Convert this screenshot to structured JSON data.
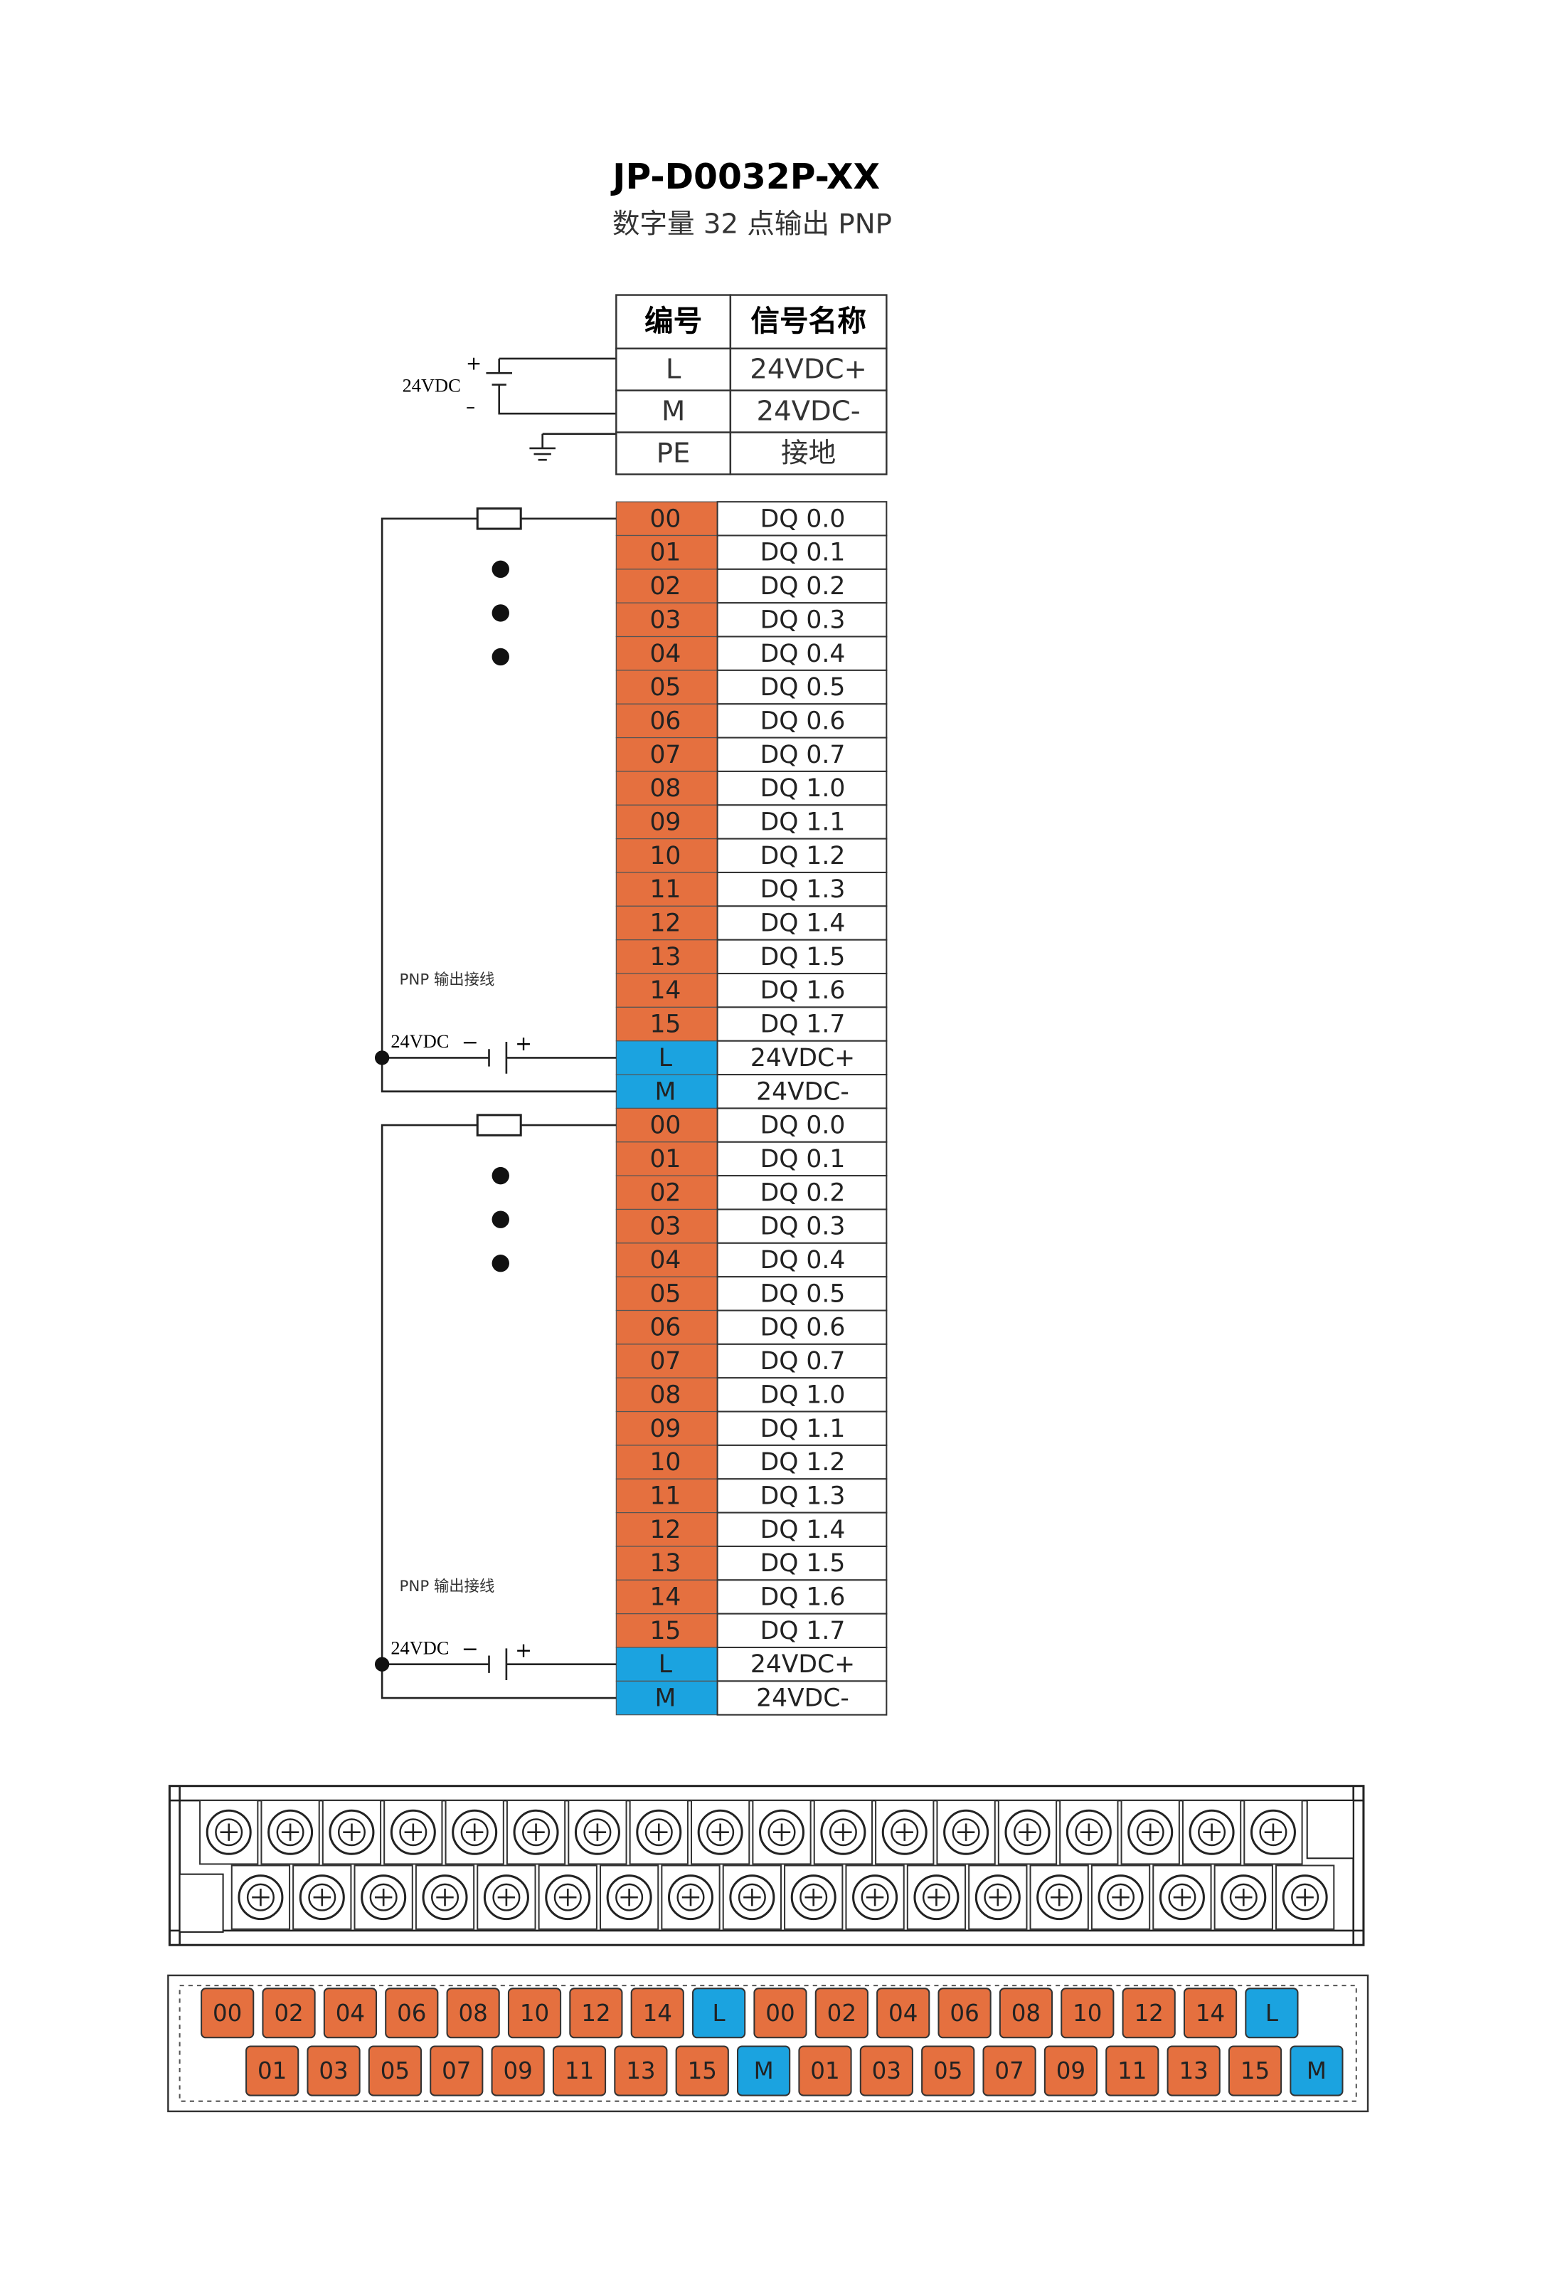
{
  "title": "JP-D0032P-XX",
  "subtitle": "数字量 32 点输出  PNP",
  "power": {
    "label": "24VDC",
    "plus": "+",
    "minus": "–",
    "table": {
      "header": [
        "编号",
        "信号名称"
      ],
      "rows": [
        [
          "L",
          "24VDC+"
        ],
        [
          "M",
          "24VDC-"
        ],
        [
          "PE",
          "接地"
        ]
      ]
    }
  },
  "groups": [
    {
      "label": "PNP 输出接线",
      "supply": "24VDC",
      "minus": "−",
      "plus": "+",
      "rows": [
        [
          "00",
          "DQ 0.0"
        ],
        [
          "01",
          "DQ 0.1"
        ],
        [
          "02",
          "DQ 0.2"
        ],
        [
          "03",
          "DQ 0.3"
        ],
        [
          "04",
          "DQ 0.4"
        ],
        [
          "05",
          "DQ 0.5"
        ],
        [
          "06",
          "DQ 0.6"
        ],
        [
          "07",
          "DQ 0.7"
        ],
        [
          "08",
          "DQ 1.0"
        ],
        [
          "09",
          "DQ 1.1"
        ],
        [
          "10",
          "DQ 1.2"
        ],
        [
          "11",
          "DQ 1.3"
        ],
        [
          "12",
          "DQ 1.4"
        ],
        [
          "13",
          "DQ 1.5"
        ],
        [
          "14",
          "DQ 1.6"
        ],
        [
          "15",
          "DQ 1.7"
        ],
        [
          "L",
          "24VDC+"
        ],
        [
          "M",
          "24VDC-"
        ]
      ]
    },
    {
      "label": "PNP 输出接线",
      "supply": "24VDC",
      "minus": "−",
      "plus": "+",
      "rows": [
        [
          "00",
          "DQ 0.0"
        ],
        [
          "01",
          "DQ 0.1"
        ],
        [
          "02",
          "DQ 0.2"
        ],
        [
          "03",
          "DQ 0.3"
        ],
        [
          "04",
          "DQ 0.4"
        ],
        [
          "05",
          "DQ 0.5"
        ],
        [
          "06",
          "DQ 0.6"
        ],
        [
          "07",
          "DQ 0.7"
        ],
        [
          "08",
          "DQ 1.0"
        ],
        [
          "09",
          "DQ 1.1"
        ],
        [
          "10",
          "DQ 1.2"
        ],
        [
          "11",
          "DQ 1.3"
        ],
        [
          "12",
          "DQ 1.4"
        ],
        [
          "13",
          "DQ 1.5"
        ],
        [
          "14",
          "DQ 1.6"
        ],
        [
          "15",
          "DQ 1.7"
        ],
        [
          "L",
          "24VDC+"
        ],
        [
          "M",
          "24VDC-"
        ]
      ]
    }
  ],
  "strip": {
    "top": [
      "00",
      "02",
      "04",
      "06",
      "08",
      "10",
      "12",
      "14",
      "L",
      "00",
      "02",
      "04",
      "06",
      "08",
      "10",
      "12",
      "14",
      "L"
    ],
    "bottom": [
      "01",
      "03",
      "05",
      "07",
      "09",
      "11",
      "13",
      "15",
      "M",
      "01",
      "03",
      "05",
      "07",
      "09",
      "11",
      "13",
      "15",
      "M"
    ]
  }
}
